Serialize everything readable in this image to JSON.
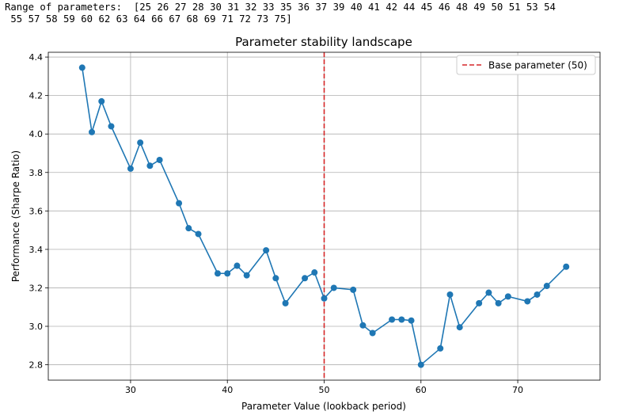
{
  "console": {
    "line1": "Range of parameters:  [25 26 27 28 30 31 32 33 35 36 37 39 40 41 42 44 45 46 48 49 50 51 53 54",
    "line2": " 55 57 58 59 60 62 63 64 66 67 68 69 71 72 73 75]"
  },
  "chart_data": {
    "type": "line",
    "title": "Parameter stability landscape",
    "xlabel": "Parameter Value (lookback period)",
    "ylabel": "Performance (Sharpe Ratio)",
    "xlim": [
      21.5,
      78.5
    ],
    "ylim": [
      2.72,
      4.425
    ],
    "x_ticks": [
      "30",
      "40",
      "50",
      "60",
      "70"
    ],
    "y_ticks": [
      "2.8",
      "3.0",
      "3.2",
      "3.4",
      "3.6",
      "3.8",
      "4.0",
      "4.2",
      "4.4"
    ],
    "grid": true,
    "legend_position": "top-right",
    "series": [
      {
        "color": "#1f77b4",
        "marker": "circle",
        "x": [
          25,
          26,
          27,
          28,
          30,
          31,
          32,
          33,
          35,
          36,
          37,
          39,
          40,
          41,
          42,
          44,
          45,
          46,
          48,
          49,
          50,
          51,
          53,
          54,
          55,
          57,
          58,
          59,
          60,
          62,
          63,
          64,
          66,
          67,
          68,
          69,
          71,
          72,
          73,
          75
        ],
        "y": [
          4.345,
          4.01,
          4.17,
          4.04,
          3.82,
          3.955,
          3.835,
          3.865,
          3.64,
          3.51,
          3.48,
          3.275,
          3.275,
          3.315,
          3.265,
          3.395,
          3.25,
          3.12,
          3.25,
          3.28,
          3.145,
          3.2,
          3.19,
          3.005,
          2.965,
          3.035,
          3.035,
          3.03,
          2.8,
          2.885,
          3.165,
          2.995,
          3.12,
          3.175,
          3.12,
          3.155,
          3.13,
          3.165,
          3.21,
          3.31
        ]
      }
    ],
    "reference_line": {
      "orientation": "vertical",
      "x": 50,
      "color": "#d62728",
      "style": "dashed",
      "label": "Base parameter (50)"
    }
  }
}
